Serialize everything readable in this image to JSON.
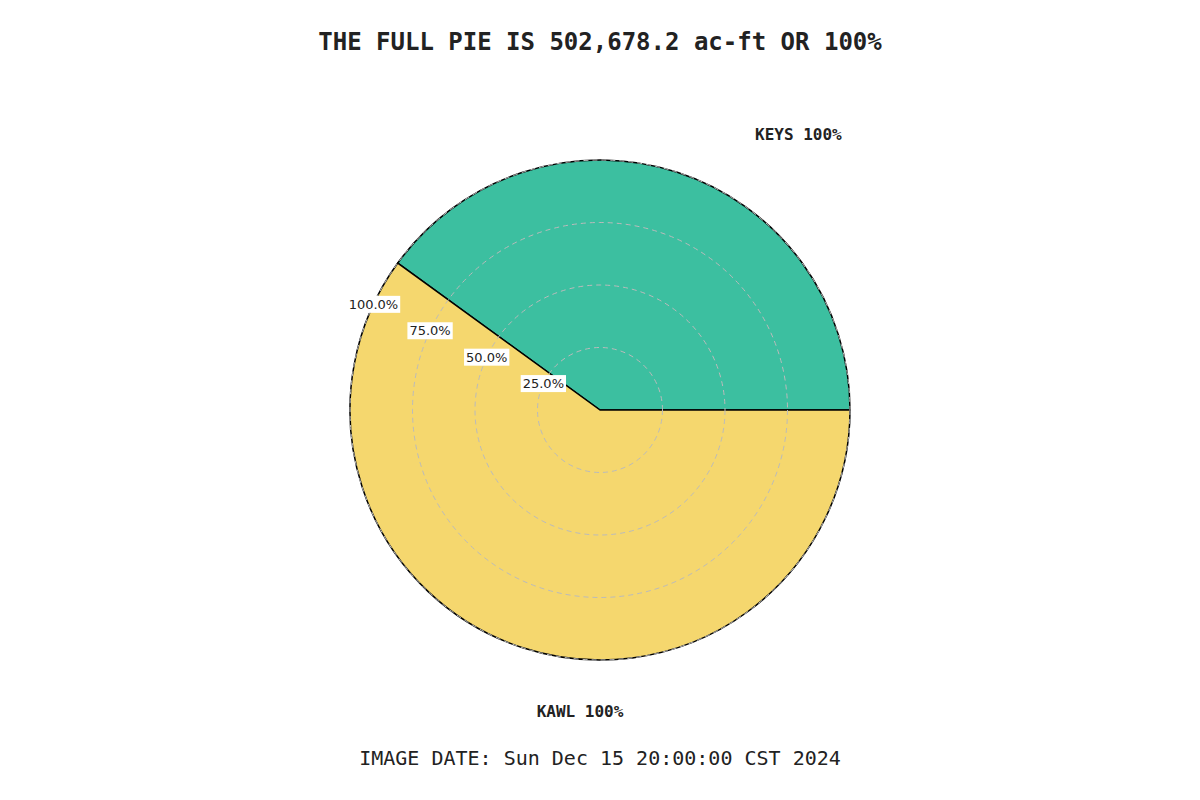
{
  "chart_data": {
    "type": "pie",
    "title": "THE FULL PIE IS 502,678.2 ac-ft OR 100%",
    "categories": [
      "KEYS  100%",
      "KAWL  100%"
    ],
    "values": [
      40.0,
      60.0
    ],
    "colors": [
      "#3CBFA0",
      "#F5D76E"
    ],
    "ylim": [
      0,
      100
    ],
    "yticks": [
      {
        "value": 25.0,
        "label": "25.0%"
      },
      {
        "value": 50.0,
        "label": "50.0%"
      },
      {
        "value": 75.0,
        "label": "75.0%"
      },
      {
        "value": 100.0,
        "label": "100.0%"
      }
    ],
    "grid": true,
    "annotations": [
      "IMAGE DATE: Sun Dec 15 20:00:00 CST 2024"
    ]
  }
}
